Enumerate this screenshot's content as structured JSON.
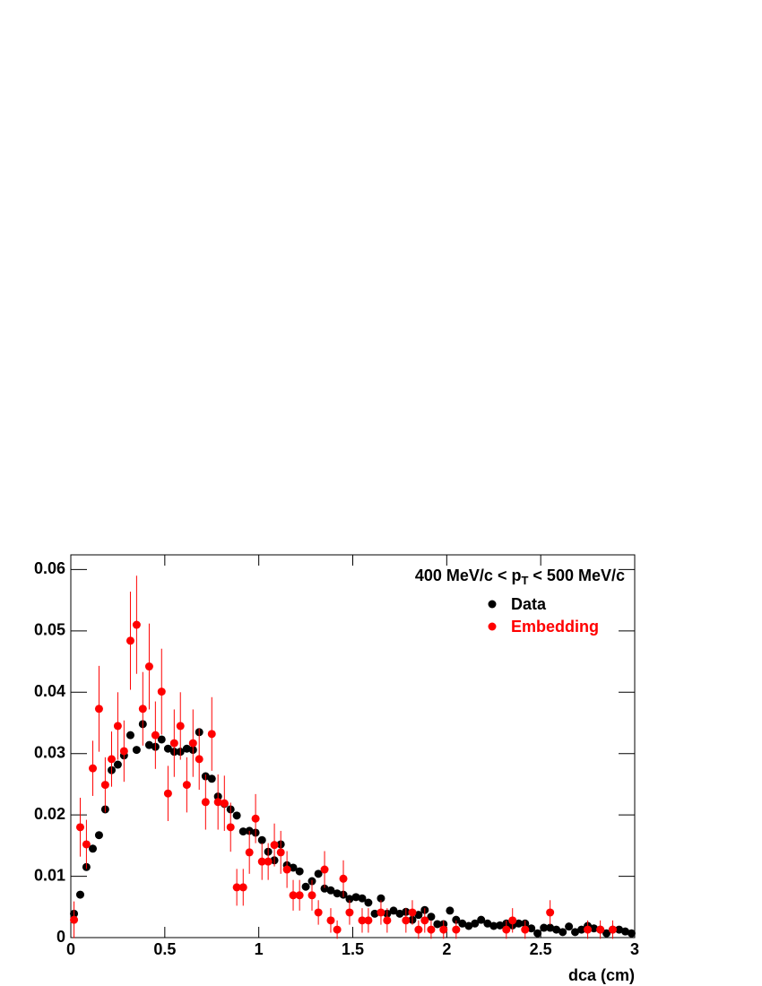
{
  "chart_data": {
    "type": "scatter",
    "x_label": "dca (cm)",
    "annotation": {
      "before": "400 MeV/c < p",
      "sub": "T",
      "after": " < 500 MeV/c"
    },
    "xlim": [
      0,
      3
    ],
    "xticks": [
      0,
      0.5,
      1,
      1.5,
      2,
      2.5,
      3
    ],
    "ylim": [
      0,
      0.0624
    ],
    "yticks": [
      0,
      0.01,
      0.02,
      0.03,
      0.04,
      0.05,
      0.06
    ],
    "legend": "top-right",
    "series": [
      {
        "name": "Data",
        "color": "#000000",
        "x": [
          0.017,
          0.05,
          0.083,
          0.117,
          0.15,
          0.183,
          0.217,
          0.25,
          0.283,
          0.317,
          0.35,
          0.383,
          0.417,
          0.45,
          0.483,
          0.517,
          0.55,
          0.583,
          0.617,
          0.65,
          0.683,
          0.717,
          0.75,
          0.783,
          0.817,
          0.85,
          0.883,
          0.917,
          0.95,
          0.983,
          1.017,
          1.05,
          1.083,
          1.117,
          1.15,
          1.183,
          1.217,
          1.25,
          1.283,
          1.317,
          1.35,
          1.383,
          1.417,
          1.45,
          1.483,
          1.517,
          1.55,
          1.583,
          1.617,
          1.65,
          1.683,
          1.717,
          1.75,
          1.783,
          1.817,
          1.85,
          1.883,
          1.917,
          1.95,
          1.983,
          2.017,
          2.05,
          2.083,
          2.117,
          2.15,
          2.183,
          2.217,
          2.25,
          2.283,
          2.317,
          2.35,
          2.383,
          2.417,
          2.45,
          2.483,
          2.517,
          2.55,
          2.583,
          2.617,
          2.65,
          2.683,
          2.717,
          2.75,
          2.783,
          2.817,
          2.85,
          2.883,
          2.917,
          2.95,
          2.983
        ],
        "values": [
          0.0039,
          0.007,
          0.0115,
          0.0145,
          0.0167,
          0.0209,
          0.0273,
          0.0282,
          0.0297,
          0.033,
          0.0306,
          0.0348,
          0.0314,
          0.0311,
          0.0323,
          0.0308,
          0.0303,
          0.0303,
          0.0308,
          0.0306,
          0.0335,
          0.0263,
          0.0259,
          0.023,
          0.0218,
          0.0209,
          0.0199,
          0.0173,
          0.0174,
          0.0171,
          0.0159,
          0.014,
          0.0126,
          0.0152,
          0.0118,
          0.0114,
          0.0108,
          0.0083,
          0.0092,
          0.0104,
          0.008,
          0.0077,
          0.0072,
          0.007,
          0.0063,
          0.0066,
          0.0064,
          0.0057,
          0.0039,
          0.0064,
          0.0039,
          0.0044,
          0.0039,
          0.0042,
          0.0029,
          0.0037,
          0.0045,
          0.0034,
          0.0022,
          0.0022,
          0.0044,
          0.0029,
          0.0023,
          0.0019,
          0.0023,
          0.0029,
          0.0023,
          0.0019,
          0.002,
          0.0023,
          0.002,
          0.0023,
          0.0023,
          0.0015,
          0.0007,
          0.0016,
          0.0016,
          0.0013,
          0.0009,
          0.0018,
          0.0009,
          0.0013,
          0.0019,
          0.0015,
          0.0013,
          0.0007,
          0.0013,
          0.0013,
          0.001,
          0.0007
        ]
      },
      {
        "name": "Embedding",
        "color": "#ff0000",
        "x": [
          0.017,
          0.05,
          0.083,
          0.117,
          0.15,
          0.183,
          0.217,
          0.25,
          0.283,
          0.317,
          0.35,
          0.383,
          0.417,
          0.45,
          0.483,
          0.517,
          0.55,
          0.583,
          0.617,
          0.65,
          0.683,
          0.717,
          0.75,
          0.783,
          0.817,
          0.85,
          0.883,
          0.917,
          0.95,
          0.983,
          1.017,
          1.05,
          1.083,
          1.117,
          1.15,
          1.183,
          1.217,
          1.283,
          1.317,
          1.35,
          1.383,
          1.417,
          1.45,
          1.483,
          1.55,
          1.583,
          1.65,
          1.683,
          1.783,
          1.817,
          1.85,
          1.883,
          1.917,
          1.983,
          2.05,
          2.317,
          2.35,
          2.417,
          2.55,
          2.75,
          2.817,
          2.883
        ],
        "values": [
          0.0029,
          0.018,
          0.0152,
          0.0276,
          0.0373,
          0.0249,
          0.0291,
          0.0345,
          0.0304,
          0.0484,
          0.051,
          0.0373,
          0.0442,
          0.033,
          0.0401,
          0.0235,
          0.0317,
          0.0345,
          0.0249,
          0.0317,
          0.0291,
          0.0221,
          0.0332,
          0.0221,
          0.0219,
          0.018,
          0.0082,
          0.0082,
          0.0139,
          0.0194,
          0.0124,
          0.0124,
          0.0151,
          0.0139,
          0.0111,
          0.0069,
          0.0069,
          0.0069,
          0.0041,
          0.0111,
          0.0028,
          0.0013,
          0.0096,
          0.0041,
          0.0028,
          0.0028,
          0.0041,
          0.0028,
          0.0028,
          0.0041,
          0.0013,
          0.0028,
          0.0013,
          0.0013,
          0.0013,
          0.0013,
          0.0028,
          0.0013,
          0.0041,
          0.0013,
          0.0013,
          0.0013
        ],
        "errors": [
          0.003,
          0.0048,
          0.004,
          0.0045,
          0.007,
          0.0045,
          0.0045,
          0.0055,
          0.005,
          0.008,
          0.008,
          0.006,
          0.007,
          0.0055,
          0.007,
          0.0045,
          0.0055,
          0.0055,
          0.0045,
          0.0055,
          0.005,
          0.0045,
          0.006,
          0.0045,
          0.0045,
          0.004,
          0.003,
          0.003,
          0.0035,
          0.004,
          0.003,
          0.003,
          0.0035,
          0.0035,
          0.003,
          0.0025,
          0.0025,
          0.0025,
          0.002,
          0.003,
          0.002,
          0.0015,
          0.003,
          0.002,
          0.002,
          0.002,
          0.002,
          0.002,
          0.002,
          0.002,
          0.0015,
          0.002,
          0.0015,
          0.0015,
          0.0015,
          0.0015,
          0.002,
          0.0015,
          0.002,
          0.0015,
          0.0015,
          0.0015
        ]
      }
    ]
  }
}
